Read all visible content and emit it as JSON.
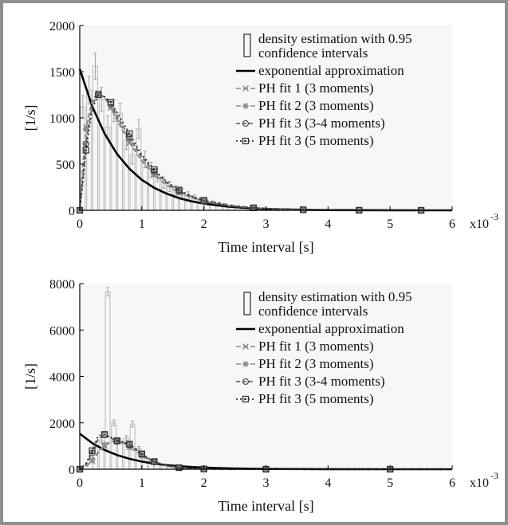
{
  "chart_data": [
    {
      "type": "bar",
      "xlabel": "Time interval [s]",
      "ylabel": "[1/s]",
      "x_multiplier_label": "x10",
      "x_multiplier_exp": "-3",
      "xlim": [
        0,
        6
      ],
      "ylim": [
        0,
        2000
      ],
      "xticks": [
        "0",
        "1",
        "2",
        "3",
        "4",
        "5",
        "6"
      ],
      "yticks": [
        "0",
        "500",
        "1000",
        "1500",
        "2000"
      ],
      "grid": false,
      "legend_position": "top-right",
      "legend": [
        "density estimation with 0.95",
        "confidence intervals",
        "exponential approximation",
        "PH fit 1 (3 moments)",
        "PH fit 2 (3 moments)",
        "PH fit 3 (3-4 moments)",
        "PH fit 3 (5 moments)"
      ],
      "histogram": {
        "bin_width": 0.1,
        "x": [
          0.05,
          0.15,
          0.25,
          0.35,
          0.45,
          0.55,
          0.65,
          0.75,
          0.85,
          0.95,
          1.05,
          1.15,
          1.25,
          1.35,
          1.45,
          1.55,
          1.65,
          1.75,
          1.85,
          1.95,
          2.05,
          2.15,
          2.25,
          2.35,
          2.45,
          2.55,
          2.65,
          2.75,
          2.85,
          2.95,
          3.05,
          3.15,
          3.25
        ],
        "values": [
          1120,
          1300,
          1560,
          1200,
          900,
          1080,
          1050,
          760,
          600,
          880,
          550,
          440,
          380,
          300,
          260,
          220,
          190,
          160,
          130,
          110,
          90,
          80,
          65,
          55,
          45,
          38,
          30,
          25,
          20,
          16,
          12,
          10,
          8
        ],
        "ci": [
          120,
          150,
          140,
          130,
          120,
          120,
          110,
          100,
          100,
          100,
          90,
          80,
          70,
          60,
          55,
          50,
          45,
          40,
          35,
          30,
          25,
          22,
          20,
          18,
          15,
          13,
          11,
          10,
          8,
          7,
          6,
          5,
          5
        ]
      },
      "series": [
        {
          "name": "exponential approximation",
          "x": [
            0,
            0.2,
            0.4,
            0.6,
            0.8,
            1.0,
            1.2,
            1.4,
            1.6,
            1.8,
            2.0,
            2.4,
            2.8,
            3.2,
            3.6,
            4.0,
            4.5,
            5.0,
            5.5,
            6.0
          ],
          "values": [
            1530,
            1125,
            830,
            610,
            450,
            330,
            243,
            180,
            132,
            97,
            72,
            39,
            21,
            11,
            6,
            3,
            2,
            1,
            0,
            0
          ]
        },
        {
          "name": "PH fit 1 (3 moments)",
          "x": [
            0,
            0.05,
            0.1,
            0.2,
            0.3,
            0.4,
            0.5,
            0.6,
            0.8,
            1.0,
            1.2,
            1.4,
            1.6,
            1.8,
            2.0,
            2.4,
            2.8,
            3.2,
            3.6,
            4.0,
            4.5,
            5.0,
            5.5,
            6.0
          ],
          "values": [
            0,
            500,
            900,
            1200,
            1270,
            1220,
            1110,
            970,
            730,
            530,
            380,
            270,
            190,
            135,
            95,
            48,
            24,
            12,
            6,
            3,
            1,
            0,
            0,
            0
          ]
        },
        {
          "name": "PH fit 2 (3 moments)",
          "x": [
            0,
            0.05,
            0.1,
            0.2,
            0.3,
            0.4,
            0.5,
            0.6,
            0.8,
            1.0,
            1.2,
            1.4,
            1.6,
            1.8,
            2.0,
            2.4,
            2.8,
            3.2,
            3.6,
            4.0,
            4.5,
            5.0,
            5.5,
            6.0
          ],
          "values": [
            0,
            480,
            880,
            1190,
            1260,
            1220,
            1120,
            990,
            750,
            550,
            395,
            280,
            198,
            140,
            98,
            50,
            25,
            13,
            6,
            3,
            1,
            0,
            0,
            0
          ]
        },
        {
          "name": "PH fit 3 (3-4 moments)",
          "x": [
            0,
            0.05,
            0.1,
            0.2,
            0.3,
            0.4,
            0.5,
            0.6,
            0.8,
            1.0,
            1.2,
            1.4,
            1.6,
            1.8,
            2.0,
            2.4,
            2.8,
            3.2,
            3.6,
            4.0,
            4.5,
            5.0,
            5.5,
            6.0
          ],
          "values": [
            0,
            350,
            720,
            1150,
            1250,
            1230,
            1150,
            1020,
            790,
            580,
            420,
            300,
            210,
            148,
            104,
            52,
            26,
            13,
            6,
            3,
            1,
            0,
            0,
            0
          ]
        },
        {
          "name": "PH fit 3 (5 moments)",
          "x": [
            0,
            0.05,
            0.1,
            0.2,
            0.3,
            0.4,
            0.5,
            0.6,
            0.8,
            1.0,
            1.2,
            1.4,
            1.6,
            1.8,
            2.0,
            2.4,
            2.8,
            3.2,
            3.6,
            4.0,
            4.5,
            5.0,
            5.5,
            6.0
          ],
          "values": [
            0,
            300,
            650,
            1100,
            1250,
            1230,
            1170,
            1060,
            830,
            600,
            440,
            310,
            220,
            155,
            108,
            54,
            27,
            13,
            6,
            3,
            1,
            0,
            0,
            0
          ]
        }
      ]
    },
    {
      "type": "bar",
      "xlabel": "Time interval [s]",
      "ylabel": "[1/s]",
      "x_multiplier_label": "x10",
      "x_multiplier_exp": "-3",
      "xlim": [
        0,
        6
      ],
      "ylim": [
        0,
        8000
      ],
      "xticks": [
        "0",
        "1",
        "2",
        "3",
        "4",
        "5",
        "6"
      ],
      "yticks": [
        "0",
        "2000",
        "4000",
        "6000",
        "8000"
      ],
      "grid": false,
      "legend_position": "top-right",
      "legend": [
        "density estimation with 0.95",
        "confidence intervals",
        "exponential approximation",
        "PH fit 1 (3 moments)",
        "PH fit 2 (3 moments)",
        "PH fit 3 (3-4 moments)",
        "PH fit 3 (5 moments)"
      ],
      "histogram": {
        "bin_width": 0.1,
        "x": [
          0.25,
          0.35,
          0.45,
          0.55,
          0.65,
          0.75,
          0.85,
          0.95,
          1.05,
          1.15,
          1.25,
          1.35,
          1.45,
          1.55,
          1.65,
          1.75
        ],
        "values": [
          1050,
          1250,
          7650,
          2000,
          1200,
          1350,
          1950,
          900,
          500,
          350,
          250,
          180,
          120,
          80,
          50,
          30
        ],
        "ci": [
          100,
          110,
          180,
          120,
          100,
          100,
          120,
          80,
          60,
          50,
          40,
          30,
          20,
          15,
          10,
          8
        ]
      },
      "series": [
        {
          "name": "exponential approximation",
          "x": [
            0,
            0.2,
            0.4,
            0.6,
            0.8,
            1.0,
            1.2,
            1.4,
            1.6,
            1.8,
            2.0,
            2.4,
            2.8,
            3.2,
            3.6,
            4.0,
            4.5,
            5.0,
            5.5,
            6.0
          ],
          "values": [
            1530,
            1125,
            830,
            610,
            450,
            330,
            243,
            180,
            132,
            97,
            72,
            39,
            21,
            11,
            6,
            3,
            2,
            1,
            0,
            0
          ]
        },
        {
          "name": "PH fit 1 (3 moments)",
          "x": [
            0,
            0.1,
            0.2,
            0.3,
            0.4,
            0.5,
            0.6,
            0.7,
            0.8,
            0.9,
            1.0,
            1.1,
            1.2,
            1.4,
            1.6,
            1.8,
            2.0,
            2.4,
            3.0,
            4.0,
            5.0,
            6.0
          ],
          "values": [
            0,
            100,
            350,
            700,
            1000,
            1180,
            1200,
            1120,
            960,
            780,
            600,
            440,
            310,
            150,
            70,
            30,
            12,
            2,
            0,
            0,
            0,
            0
          ]
        },
        {
          "name": "PH fit 2 (3 moments)",
          "x": [
            0,
            0.1,
            0.2,
            0.3,
            0.4,
            0.5,
            0.6,
            0.7,
            0.8,
            0.9,
            1.0,
            1.1,
            1.2,
            1.4,
            1.6,
            1.8,
            2.0,
            2.4,
            3.0,
            4.0,
            5.0,
            6.0
          ],
          "values": [
            0,
            120,
            400,
            760,
            1050,
            1200,
            1210,
            1120,
            950,
            770,
            590,
            430,
            300,
            145,
            68,
            28,
            11,
            2,
            0,
            0,
            0,
            0
          ]
        },
        {
          "name": "PH fit 3 (3-4 moments)",
          "x": [
            0,
            0.1,
            0.2,
            0.3,
            0.4,
            0.5,
            0.6,
            0.7,
            0.8,
            0.9,
            1.0,
            1.1,
            1.2,
            1.4,
            1.6,
            1.8,
            2.0,
            2.4,
            3.0,
            4.0,
            5.0,
            6.0
          ],
          "values": [
            0,
            200,
            700,
            1300,
            1480,
            1350,
            1200,
            1150,
            1050,
            860,
            650,
            470,
            320,
            150,
            65,
            25,
            10,
            2,
            0,
            0,
            0,
            0
          ]
        },
        {
          "name": "PH fit 3 (5 moments)",
          "x": [
            0,
            0.1,
            0.2,
            0.3,
            0.4,
            0.5,
            0.6,
            0.7,
            0.8,
            0.9,
            1.0,
            1.1,
            1.2,
            1.4,
            1.6,
            1.8,
            2.0,
            2.4,
            3.0,
            4.0,
            5.0,
            6.0
          ],
          "values": [
            0,
            250,
            800,
            1450,
            1500,
            1380,
            1230,
            1180,
            1080,
            880,
            660,
            480,
            330,
            155,
            68,
            26,
            10,
            2,
            0,
            0,
            0,
            0
          ]
        }
      ]
    }
  ]
}
